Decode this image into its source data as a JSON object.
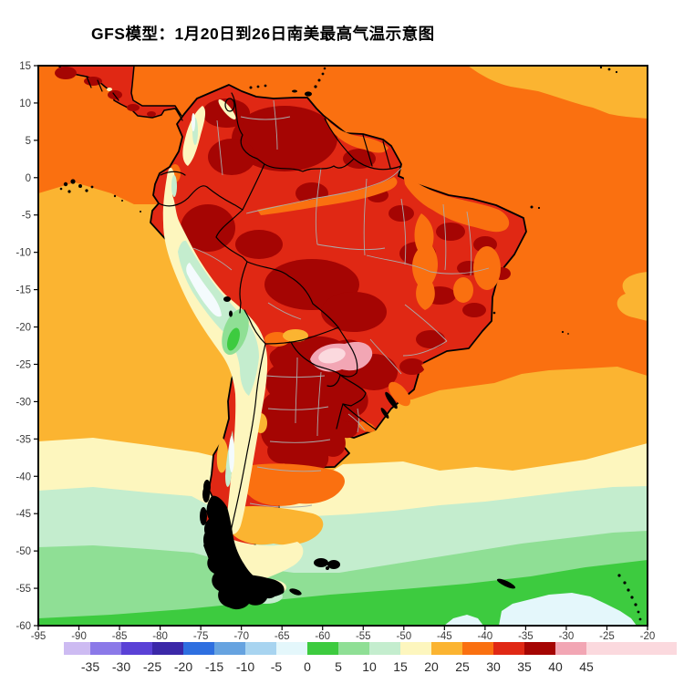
{
  "title": {
    "text": "GFS模型：1月20日到26日南美最高气温示意图"
  },
  "axes": {
    "y_tick_labels": [
      "15",
      "10",
      "5",
      "0",
      "-5",
      "-10",
      "-15",
      "-20",
      "-25",
      "-30",
      "-35",
      "-40",
      "-45",
      "-50",
      "-55",
      "-60"
    ],
    "x_tick_labels": [
      "-95",
      "-90",
      "-85",
      "-80",
      "-75",
      "-70",
      "-65",
      "-60",
      "-55",
      "-50",
      "-45",
      "-40",
      "-35",
      "-30",
      "-25",
      "-20"
    ]
  },
  "colorbar": {
    "tick_labels": [
      "-35",
      "-30",
      "-25",
      "-20",
      "-15",
      "-10",
      "-5",
      "0",
      "5",
      "10",
      "15",
      "20",
      "25",
      "30",
      "35",
      "40",
      "45"
    ],
    "segment_colors": [
      "#CDBBF2",
      "#8B79E8",
      "#5A41D6",
      "#3B28A8",
      "#2E6FE0",
      "#66A3E0",
      "#A8D4F0",
      "#E4F7FB",
      "#3DCB3F",
      "#8FDF95",
      "#C4EDCE",
      "#FDF6BE",
      "#FBB431",
      "#FA7010",
      "#E02814",
      "#A50503",
      "#F2A6B4",
      "#FBD9DE"
    ]
  },
  "palette": {
    "ocean_orange": "#FA7010",
    "amber": "#FBB431",
    "pale_yellow": "#FDF6BE",
    "mint": "#C4EDCE",
    "light_green": "#8FDF95",
    "green": "#3DCB3F",
    "pale_cyan": "#E4F7FB",
    "red": "#E02814",
    "dark_red": "#A50503",
    "pink": "#F2A6B4",
    "pale_pink": "#FBD9DE",
    "white_high": "#F4FBFD",
    "coast": "#000000",
    "admin": "#ABABAB",
    "label_ink": "#3A3A3A"
  }
}
